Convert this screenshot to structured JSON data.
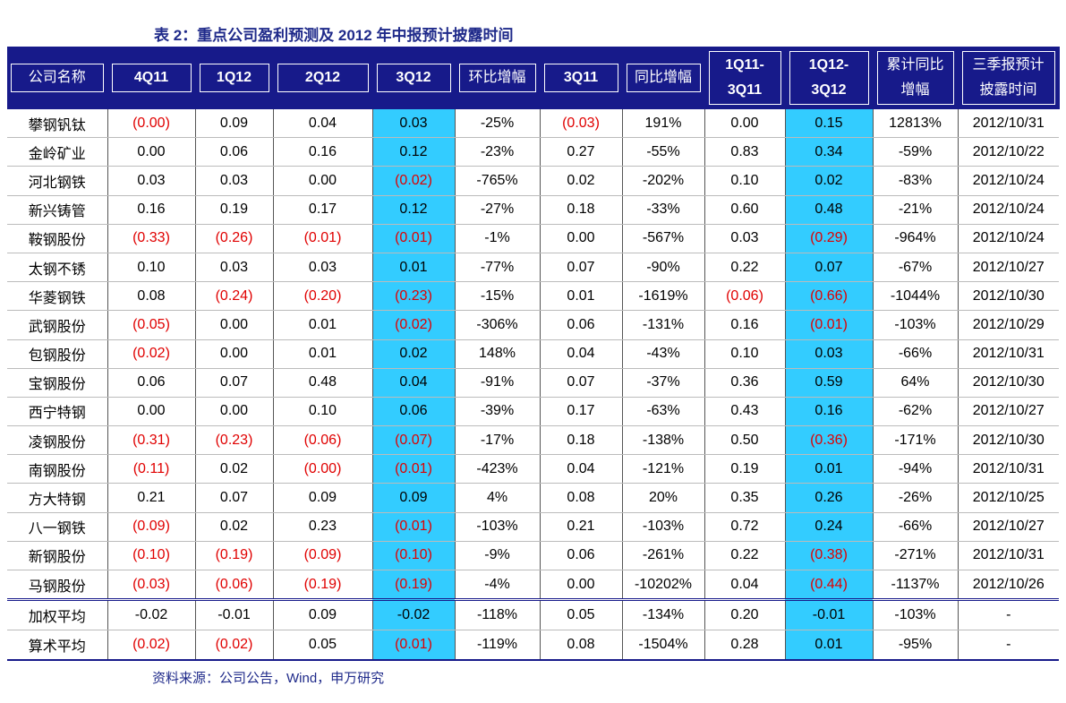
{
  "title": "表 2：重点公司盈利预测及 2012 年中报预计披露时间",
  "table": {
    "header": [
      [
        "公司名称"
      ],
      [
        "4Q11"
      ],
      [
        "1Q12"
      ],
      [
        "2Q12"
      ],
      [
        "3Q12"
      ],
      [
        "环比增幅"
      ],
      [
        "3Q11"
      ],
      [
        "同比增幅"
      ],
      [
        "1Q11-",
        "3Q11"
      ],
      [
        "1Q12-",
        "3Q12"
      ],
      [
        "累计同比",
        "增幅"
      ],
      [
        "三季报预计",
        "披露时间"
      ]
    ],
    "rows": [
      [
        "攀钢钒钛",
        "(0.00)",
        "0.09",
        "0.04",
        "0.03",
        "-25%",
        "(0.03)",
        "191%",
        "0.00",
        "0.15",
        "12813%",
        "2012/10/31"
      ],
      [
        "金岭矿业",
        "0.00",
        "0.06",
        "0.16",
        "0.12",
        "-23%",
        "0.27",
        "-55%",
        "0.83",
        "0.34",
        "-59%",
        "2012/10/22"
      ],
      [
        "河北钢铁",
        "0.03",
        "0.03",
        "0.00",
        "(0.02)",
        "-765%",
        "0.02",
        "-202%",
        "0.10",
        "0.02",
        "-83%",
        "2012/10/24"
      ],
      [
        "新兴铸管",
        "0.16",
        "0.19",
        "0.17",
        "0.12",
        "-27%",
        "0.18",
        "-33%",
        "0.60",
        "0.48",
        "-21%",
        "2012/10/24"
      ],
      [
        "鞍钢股份",
        "(0.33)",
        "(0.26)",
        "(0.01)",
        "(0.01)",
        "-1%",
        "0.00",
        "-567%",
        "0.03",
        "(0.29)",
        "-964%",
        "2012/10/24"
      ],
      [
        "太钢不锈",
        "0.10",
        "0.03",
        "0.03",
        "0.01",
        "-77%",
        "0.07",
        "-90%",
        "0.22",
        "0.07",
        "-67%",
        "2012/10/27"
      ],
      [
        "华菱钢铁",
        "0.08",
        "(0.24)",
        "(0.20)",
        "(0.23)",
        "-15%",
        "0.01",
        "-1619%",
        "(0.06)",
        "(0.66)",
        "-1044%",
        "2012/10/30"
      ],
      [
        "武钢股份",
        "(0.05)",
        "0.00",
        "0.01",
        "(0.02)",
        "-306%",
        "0.06",
        "-131%",
        "0.16",
        "(0.01)",
        "-103%",
        "2012/10/29"
      ],
      [
        "包钢股份",
        "(0.02)",
        "0.00",
        "0.01",
        "0.02",
        "148%",
        "0.04",
        "-43%",
        "0.10",
        "0.03",
        "-66%",
        "2012/10/31"
      ],
      [
        "宝钢股份",
        "0.06",
        "0.07",
        "0.48",
        "0.04",
        "-91%",
        "0.07",
        "-37%",
        "0.36",
        "0.59",
        "64%",
        "2012/10/30"
      ],
      [
        "西宁特钢",
        "0.00",
        "0.00",
        "0.10",
        "0.06",
        "-39%",
        "0.17",
        "-63%",
        "0.43",
        "0.16",
        "-62%",
        "2012/10/27"
      ],
      [
        "凌钢股份",
        "(0.31)",
        "(0.23)",
        "(0.06)",
        "(0.07)",
        "-17%",
        "0.18",
        "-138%",
        "0.50",
        "(0.36)",
        "-171%",
        "2012/10/30"
      ],
      [
        "南钢股份",
        "(0.11)",
        "0.02",
        "(0.00)",
        "(0.01)",
        "-423%",
        "0.04",
        "-121%",
        "0.19",
        "0.01",
        "-94%",
        "2012/10/31"
      ],
      [
        "方大特钢",
        "0.21",
        "0.07",
        "0.09",
        "0.09",
        "4%",
        "0.08",
        "20%",
        "0.35",
        "0.26",
        "-26%",
        "2012/10/25"
      ],
      [
        "八一钢铁",
        "(0.09)",
        "0.02",
        "0.23",
        "(0.01)",
        "-103%",
        "0.21",
        "-103%",
        "0.72",
        "0.24",
        "-66%",
        "2012/10/27"
      ],
      [
        "新钢股份",
        "(0.10)",
        "(0.19)",
        "(0.09)",
        "(0.10)",
        "-9%",
        "0.06",
        "-261%",
        "0.22",
        "(0.38)",
        "-271%",
        "2012/10/31"
      ],
      [
        "马钢股份",
        "(0.03)",
        "(0.06)",
        "(0.19)",
        "(0.19)",
        "-4%",
        "0.00",
        "-10202%",
        "0.04",
        "(0.44)",
        "-1137%",
        "2012/10/26"
      ]
    ],
    "summary_rows": [
      [
        "加权平均",
        "-0.02",
        "-0.01",
        "0.09",
        "-0.02",
        "-118%",
        "0.05",
        "-134%",
        "0.20",
        "-0.01",
        "-103%",
        "-"
      ],
      [
        "算术平均",
        "(0.02)",
        "(0.02)",
        "0.05",
        "(0.01)",
        "-119%",
        "0.08",
        "-1504%",
        "0.28",
        "0.01",
        "-95%",
        "-"
      ]
    ]
  },
  "source": "资料来源：公司公告，Wind，申万研究"
}
